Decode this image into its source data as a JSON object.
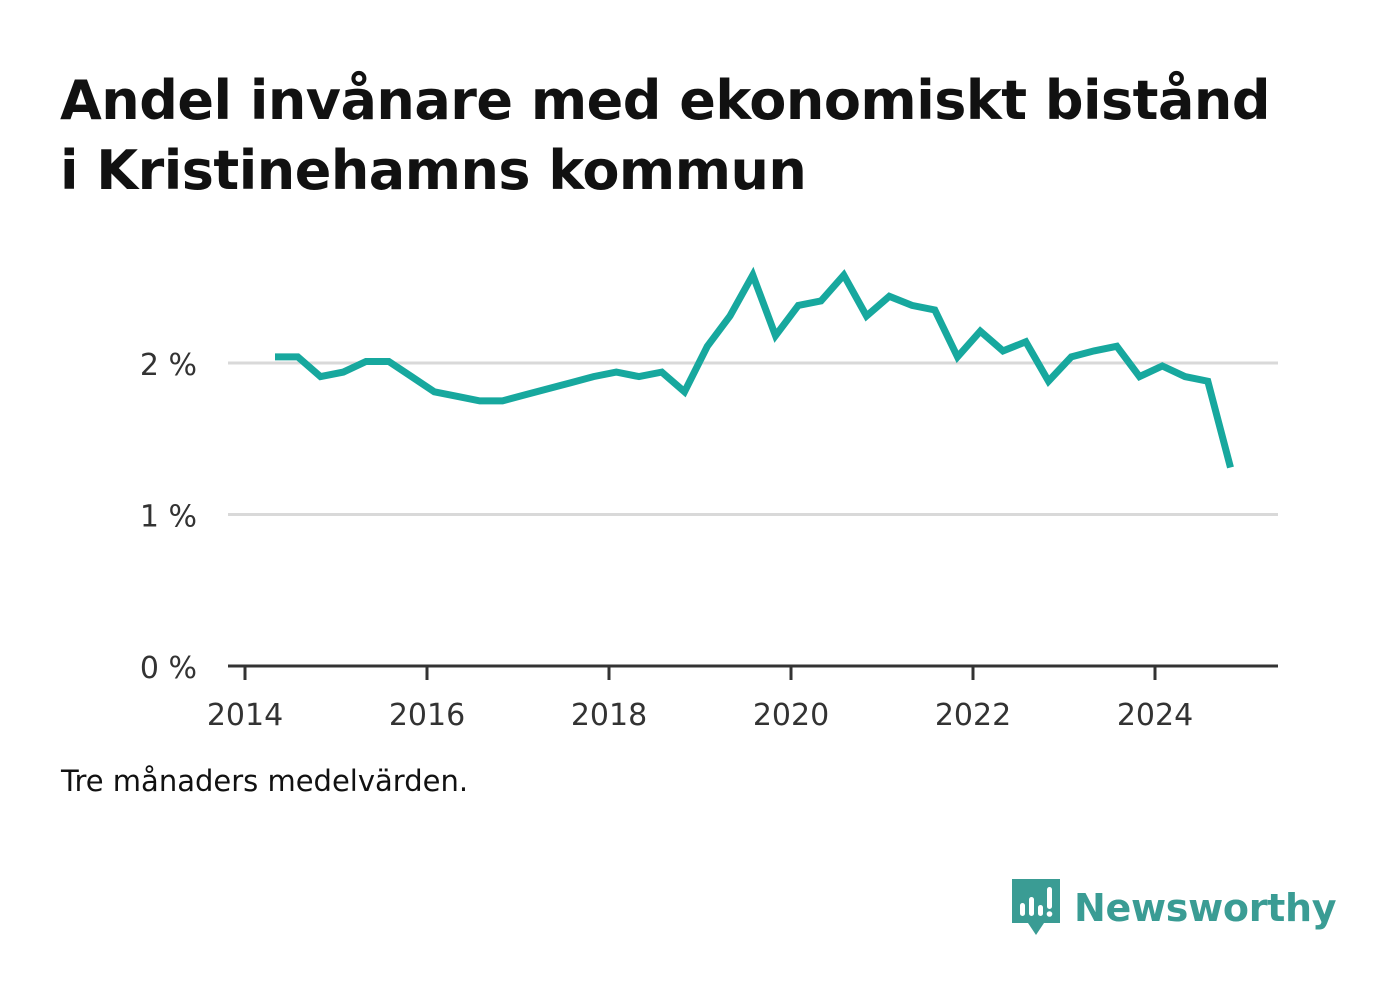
{
  "title": "Andel invånare med ekonomiskt bistånd i Kristinehamns kommun",
  "note": "Tre månaders medelvärden.",
  "brand": {
    "name": "Newsworthy",
    "icon": "bar-chart-speech-bubble-icon"
  },
  "colors": {
    "line": "#17a89e",
    "grid": "#d9d9d9",
    "axis": "#333333",
    "brand": "#3a9c94"
  },
  "chart_data": {
    "type": "line",
    "title": "Andel invånare med ekonomiskt bistånd i Kristinehamns kommun",
    "xlabel": "",
    "ylabel": "",
    "xlim": [
      2013.9,
      2025.4
    ],
    "ylim": [
      0,
      2.6
    ],
    "x_ticks": [
      2014,
      2016,
      2018,
      2020,
      2022,
      2024
    ],
    "x_tick_labels": [
      "2014",
      "2016",
      "2018",
      "2020",
      "2022",
      "2024"
    ],
    "y_ticks": [
      0,
      1,
      2
    ],
    "y_tick_labels": [
      "0 %",
      "1 %",
      "2 %"
    ],
    "grid": true,
    "series": [
      {
        "x": [
          2014.33,
          2014.58,
          2014.83,
          2015.08,
          2015.33,
          2015.58,
          2015.83,
          2016.08,
          2016.33,
          2016.58,
          2016.83,
          2017.08,
          2017.33,
          2017.58,
          2017.83,
          2018.08,
          2018.33,
          2018.58,
          2018.83,
          2019.08,
          2019.33,
          2019.58,
          2019.83,
          2020.08,
          2020.33,
          2020.58,
          2020.83,
          2021.08,
          2021.33,
          2021.58,
          2021.83,
          2022.08,
          2022.33,
          2022.58,
          2022.83,
          2023.08,
          2023.33,
          2023.58,
          2023.83,
          2024.08,
          2024.33,
          2024.58,
          2024.83
        ],
        "values": [
          2.04,
          2.04,
          1.91,
          1.94,
          2.01,
          2.01,
          1.91,
          1.81,
          1.78,
          1.75,
          1.75,
          1.79,
          1.83,
          1.87,
          1.91,
          1.94,
          1.91,
          1.94,
          1.81,
          2.11,
          2.31,
          2.58,
          2.18,
          2.38,
          2.41,
          2.58,
          2.31,
          2.44,
          2.38,
          2.35,
          2.04,
          2.21,
          2.08,
          2.14,
          1.88,
          2.04,
          2.08,
          2.11,
          1.91,
          1.98,
          1.91,
          1.88,
          1.31
        ]
      }
    ]
  }
}
